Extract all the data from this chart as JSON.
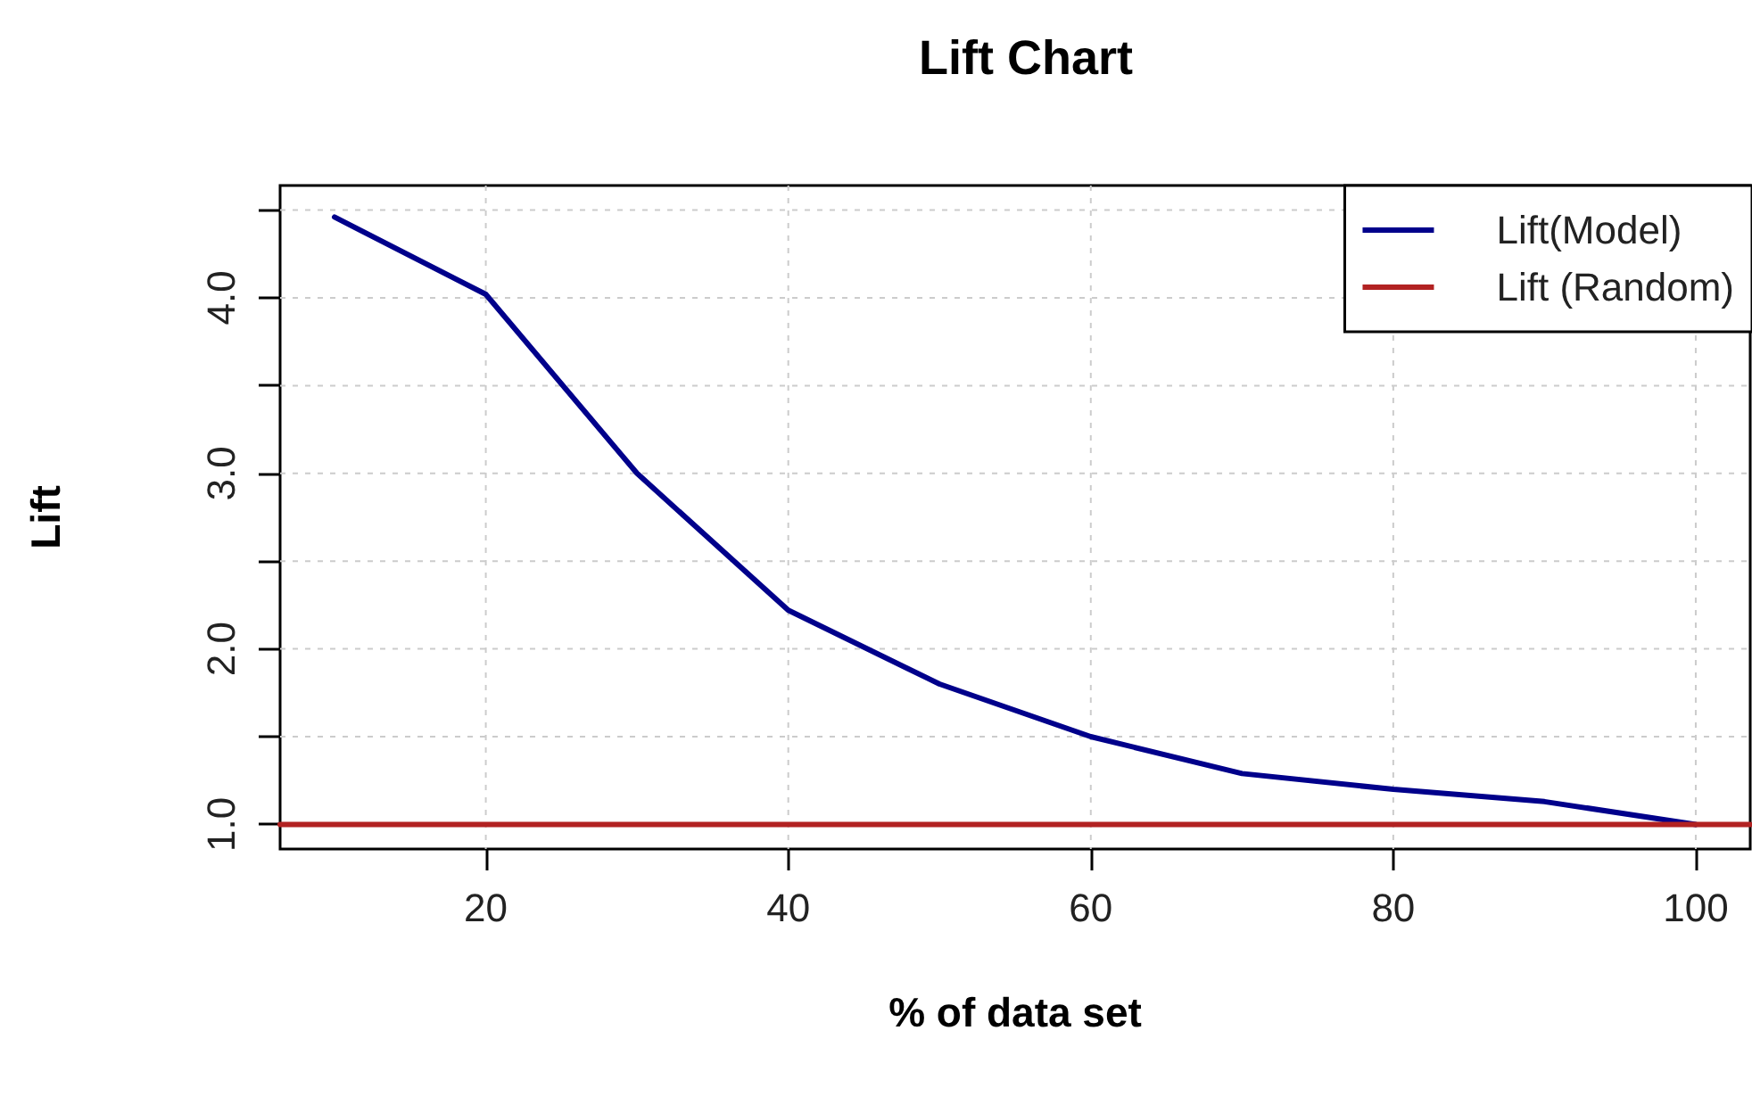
{
  "chart_data": {
    "type": "line",
    "title": "Lift Chart",
    "xlabel": "% of data set",
    "ylabel": "Lift",
    "xlim": [
      6.4,
      103.6
    ],
    "ylim": [
      0.86,
      4.64
    ],
    "xticks": [
      20,
      40,
      60,
      80,
      100
    ],
    "yticks": [
      {
        "value": 1,
        "label": "1.0"
      },
      {
        "value": 1.5,
        "label": null
      },
      {
        "value": 2,
        "label": "2.0"
      },
      {
        "value": 2.5,
        "label": null
      },
      {
        "value": 3,
        "label": "3.0"
      },
      {
        "value": 3.5,
        "label": null
      },
      {
        "value": 4,
        "label": "4.0"
      },
      {
        "value": 4.5,
        "label": null
      }
    ],
    "series": [
      {
        "name": "Lift(Model)",
        "color": "#00008b",
        "x": [
          10,
          20,
          30,
          40,
          50,
          60,
          70,
          80,
          90,
          100
        ],
        "values": [
          4.46,
          4.02,
          3.0,
          2.22,
          1.8,
          1.5,
          1.29,
          1.2,
          1.13,
          1.0
        ]
      },
      {
        "name": "Lift (Random)",
        "color": "#b22222",
        "x": [
          6.4,
          103.6
        ],
        "values": [
          1,
          1
        ]
      }
    ],
    "grid": true,
    "legend": "top right",
    "marker": "none",
    "line_style": "solid"
  }
}
